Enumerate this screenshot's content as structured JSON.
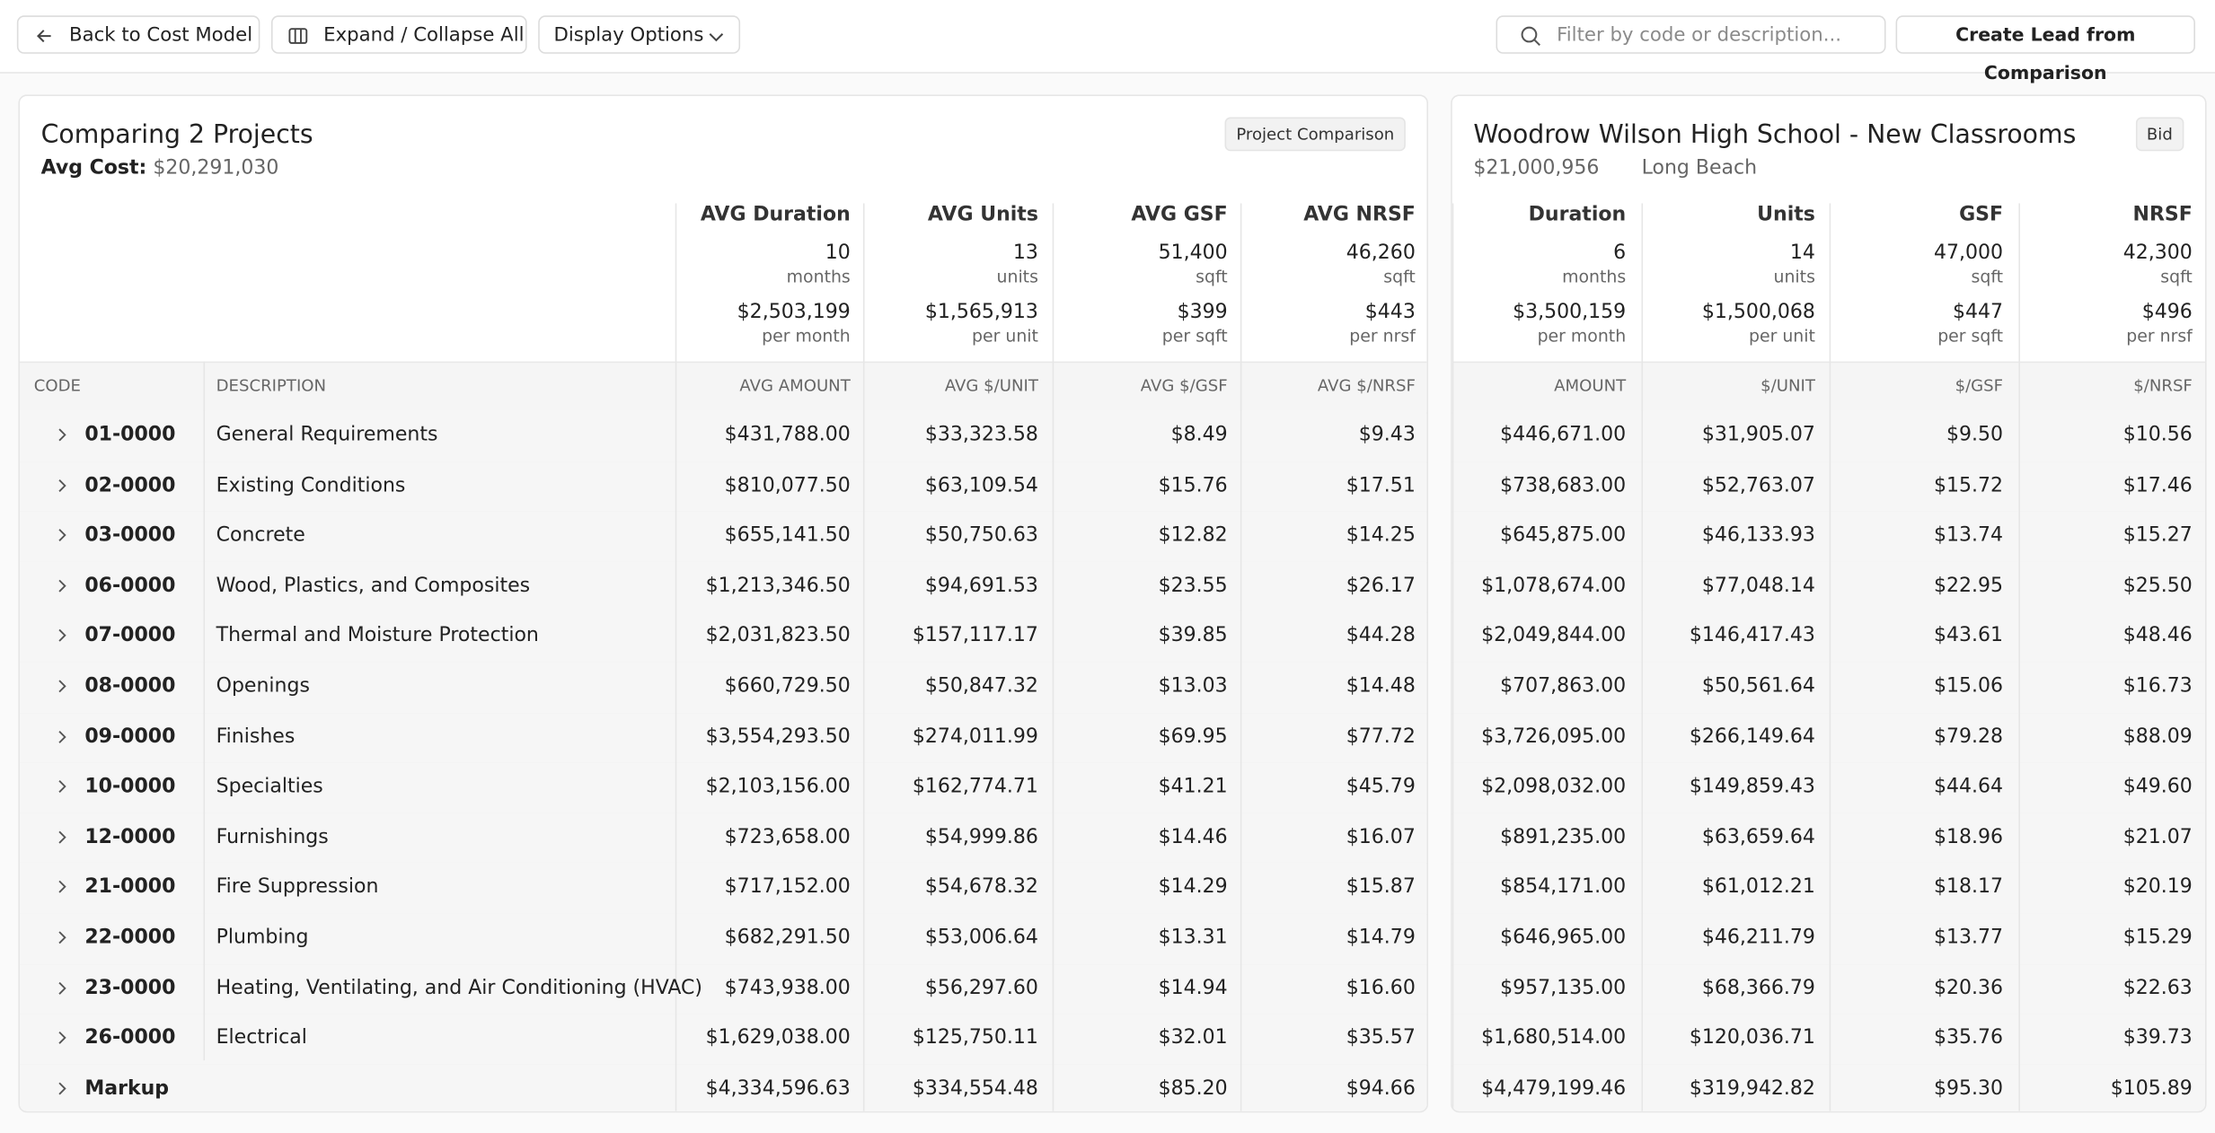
{
  "toolbar": {
    "back": "Back to Cost Model",
    "expand": "Expand / Collapse All",
    "display": "Display Options",
    "filter_placeholder": "Filter by code or description...",
    "create": "Create Lead from Comparison"
  },
  "left": {
    "title": "Comparing 2 Projects",
    "badge": "Project Comparison",
    "avg_cost_label": "Avg Cost:",
    "avg_cost": "$20,291,030",
    "metrics": [
      {
        "header": "AVG Duration",
        "value": "10",
        "unit": "months",
        "rate": "$2,503,199",
        "rate_unit": "per month"
      },
      {
        "header": "AVG Units",
        "value": "13",
        "unit": "units",
        "rate": "$1,565,913",
        "rate_unit": "per unit"
      },
      {
        "header": "AVG GSF",
        "value": "51,400",
        "unit": "sqft",
        "rate": "$399",
        "rate_unit": "per sqft"
      },
      {
        "header": "AVG NRSF",
        "value": "46,260",
        "unit": "sqft",
        "rate": "$443",
        "rate_unit": "per nrsf"
      }
    ],
    "columns": [
      "CODE",
      "DESCRIPTION",
      "AVG AMOUNT",
      "AVG $/UNIT",
      "AVG $/GSF",
      "AVG $/NRSF"
    ]
  },
  "right": {
    "title": "Woodrow Wilson High School - New Classrooms",
    "badge": "Bid",
    "amount": "$21,000,956",
    "location": "Long Beach",
    "metrics": [
      {
        "header": "Duration",
        "value": "6",
        "unit": "months",
        "rate": "$3,500,159",
        "rate_unit": "per month"
      },
      {
        "header": "Units",
        "value": "14",
        "unit": "units",
        "rate": "$1,500,068",
        "rate_unit": "per unit"
      },
      {
        "header": "GSF",
        "value": "47,000",
        "unit": "sqft",
        "rate": "$447",
        "rate_unit": "per sqft"
      },
      {
        "header": "NRSF",
        "value": "42,300",
        "unit": "sqft",
        "rate": "$496",
        "rate_unit": "per nrsf"
      }
    ],
    "columns": [
      "AMOUNT",
      "$/UNIT",
      "$/GSF",
      "$/NRSF"
    ]
  },
  "rows": [
    {
      "code": "01-0000",
      "description": "General Requirements",
      "left": [
        "$431,788.00",
        "$33,323.58",
        "$8.49",
        "$9.43"
      ],
      "right": [
        "$446,671.00",
        "$31,905.07",
        "$9.50",
        "$10.56"
      ]
    },
    {
      "code": "02-0000",
      "description": "Existing Conditions",
      "left": [
        "$810,077.50",
        "$63,109.54",
        "$15.76",
        "$17.51"
      ],
      "right": [
        "$738,683.00",
        "$52,763.07",
        "$15.72",
        "$17.46"
      ]
    },
    {
      "code": "03-0000",
      "description": "Concrete",
      "left": [
        "$655,141.50",
        "$50,750.63",
        "$12.82",
        "$14.25"
      ],
      "right": [
        "$645,875.00",
        "$46,133.93",
        "$13.74",
        "$15.27"
      ]
    },
    {
      "code": "06-0000",
      "description": "Wood, Plastics, and Composites",
      "left": [
        "$1,213,346.50",
        "$94,691.53",
        "$23.55",
        "$26.17"
      ],
      "right": [
        "$1,078,674.00",
        "$77,048.14",
        "$22.95",
        "$25.50"
      ]
    },
    {
      "code": "07-0000",
      "description": "Thermal and Moisture Protection",
      "left": [
        "$2,031,823.50",
        "$157,117.17",
        "$39.85",
        "$44.28"
      ],
      "right": [
        "$2,049,844.00",
        "$146,417.43",
        "$43.61",
        "$48.46"
      ]
    },
    {
      "code": "08-0000",
      "description": "Openings",
      "left": [
        "$660,729.50",
        "$50,847.32",
        "$13.03",
        "$14.48"
      ],
      "right": [
        "$707,863.00",
        "$50,561.64",
        "$15.06",
        "$16.73"
      ]
    },
    {
      "code": "09-0000",
      "description": "Finishes",
      "left": [
        "$3,554,293.50",
        "$274,011.99",
        "$69.95",
        "$77.72"
      ],
      "right": [
        "$3,726,095.00",
        "$266,149.64",
        "$79.28",
        "$88.09"
      ]
    },
    {
      "code": "10-0000",
      "description": "Specialties",
      "left": [
        "$2,103,156.00",
        "$162,774.71",
        "$41.21",
        "$45.79"
      ],
      "right": [
        "$2,098,032.00",
        "$149,859.43",
        "$44.64",
        "$49.60"
      ]
    },
    {
      "code": "12-0000",
      "description": "Furnishings",
      "left": [
        "$723,658.00",
        "$54,999.86",
        "$14.46",
        "$16.07"
      ],
      "right": [
        "$891,235.00",
        "$63,659.64",
        "$18.96",
        "$21.07"
      ]
    },
    {
      "code": "21-0000",
      "description": "Fire Suppression",
      "left": [
        "$717,152.00",
        "$54,678.32",
        "$14.29",
        "$15.87"
      ],
      "right": [
        "$854,171.00",
        "$61,012.21",
        "$18.17",
        "$20.19"
      ]
    },
    {
      "code": "22-0000",
      "description": "Plumbing",
      "left": [
        "$682,291.50",
        "$53,006.64",
        "$13.31",
        "$14.79"
      ],
      "right": [
        "$646,965.00",
        "$46,211.79",
        "$13.77",
        "$15.29"
      ]
    },
    {
      "code": "23-0000",
      "description": "Heating, Ventilating, and Air Conditioning (HVAC)",
      "left": [
        "$743,938.00",
        "$56,297.60",
        "$14.94",
        "$16.60"
      ],
      "right": [
        "$957,135.00",
        "$68,366.79",
        "$20.36",
        "$22.63"
      ]
    },
    {
      "code": "26-0000",
      "description": "Electrical",
      "left": [
        "$1,629,038.00",
        "$125,750.11",
        "$32.01",
        "$35.57"
      ],
      "right": [
        "$1,680,514.00",
        "$120,036.71",
        "$35.76",
        "$39.73"
      ]
    },
    {
      "code": "Markup",
      "left": [
        "$4,334,596.63",
        "$334,554.48",
        "$85.20",
        "$94.66"
      ],
      "right": [
        "$4,479,199.46",
        "$319,942.82",
        "$95.30",
        "$105.89"
      ]
    }
  ]
}
